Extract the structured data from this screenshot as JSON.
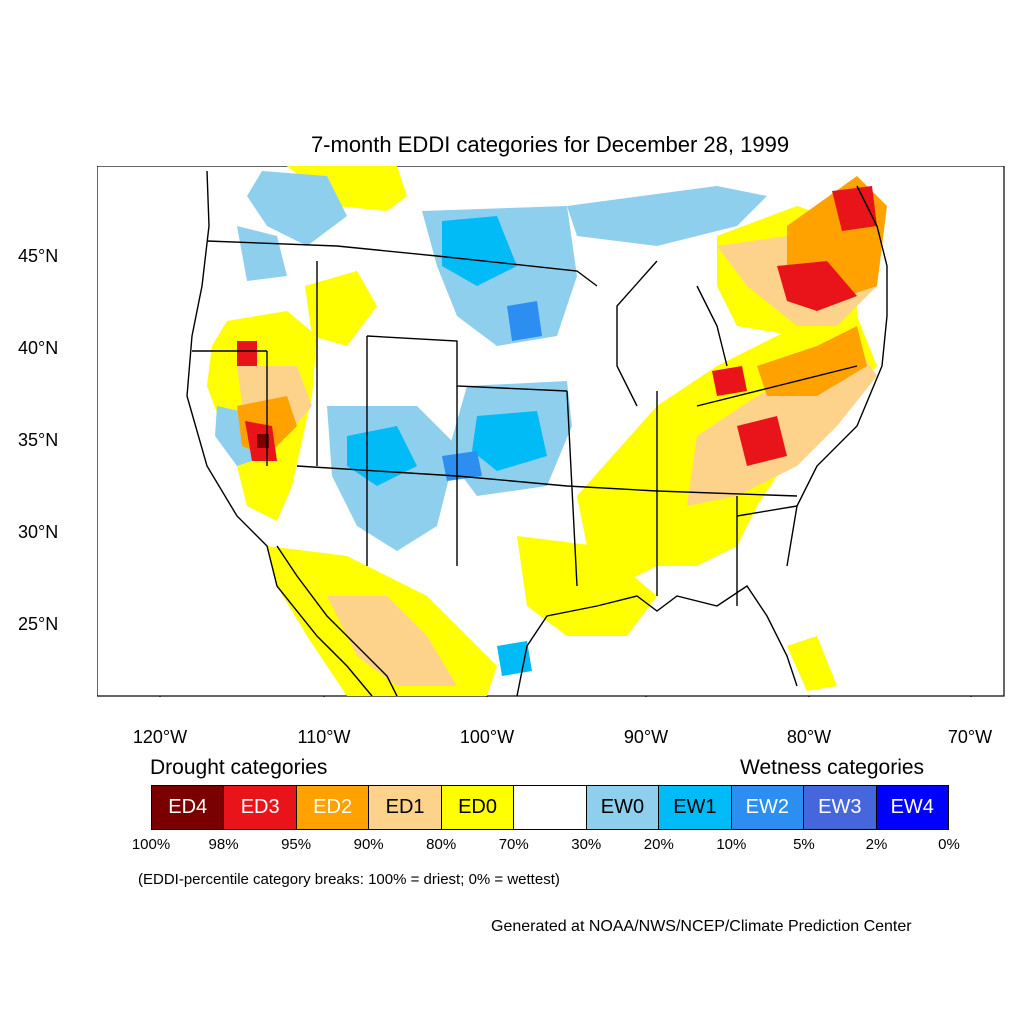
{
  "title": "7-month EDDI categories for December 28, 1999",
  "axes": {
    "lat_labels": [
      "45°N",
      "40°N",
      "35°N",
      "30°N",
      "25°N"
    ],
    "lon_labels": [
      "120°W",
      "110°W",
      "100°W",
      "90°W",
      "80°W",
      "70°W"
    ]
  },
  "legend": {
    "drought_heading": "Drought categories",
    "wetness_heading": "Wetness categories",
    "categories": [
      {
        "label": "ED4",
        "color": "#7a0000",
        "text_color": "#ffffff"
      },
      {
        "label": "ED3",
        "color": "#e8141a",
        "text_color": "#ffffff"
      },
      {
        "label": "ED2",
        "color": "#ffa200",
        "text_color": "#ffffff"
      },
      {
        "label": "ED1",
        "color": "#fdd38b",
        "text_color": "#000000"
      },
      {
        "label": "ED0",
        "color": "#ffff00",
        "text_color": "#000000"
      },
      {
        "label": "",
        "color": "#ffffff",
        "text_color": "#000000"
      },
      {
        "label": "EW0",
        "color": "#8fcfee",
        "text_color": "#000000"
      },
      {
        "label": "EW1",
        "color": "#00bbf5",
        "text_color": "#000000"
      },
      {
        "label": "EW2",
        "color": "#2b8ef0",
        "text_color": "#ffffff"
      },
      {
        "label": "EW3",
        "color": "#4566dc",
        "text_color": "#ffffff"
      },
      {
        "label": "EW4",
        "color": "#0000ff",
        "text_color": "#ffffff"
      }
    ],
    "percentiles": [
      "100%",
      "98%",
      "95%",
      "90%",
      "80%",
      "70%",
      "30%",
      "20%",
      "10%",
      "5%",
      "2%",
      "0%"
    ]
  },
  "note": "(EDDI-percentile category breaks: 100% = driest; 0% = wettest)",
  "credit": "Generated at NOAA/NWS/NCEP/Climate Prediction Center"
}
